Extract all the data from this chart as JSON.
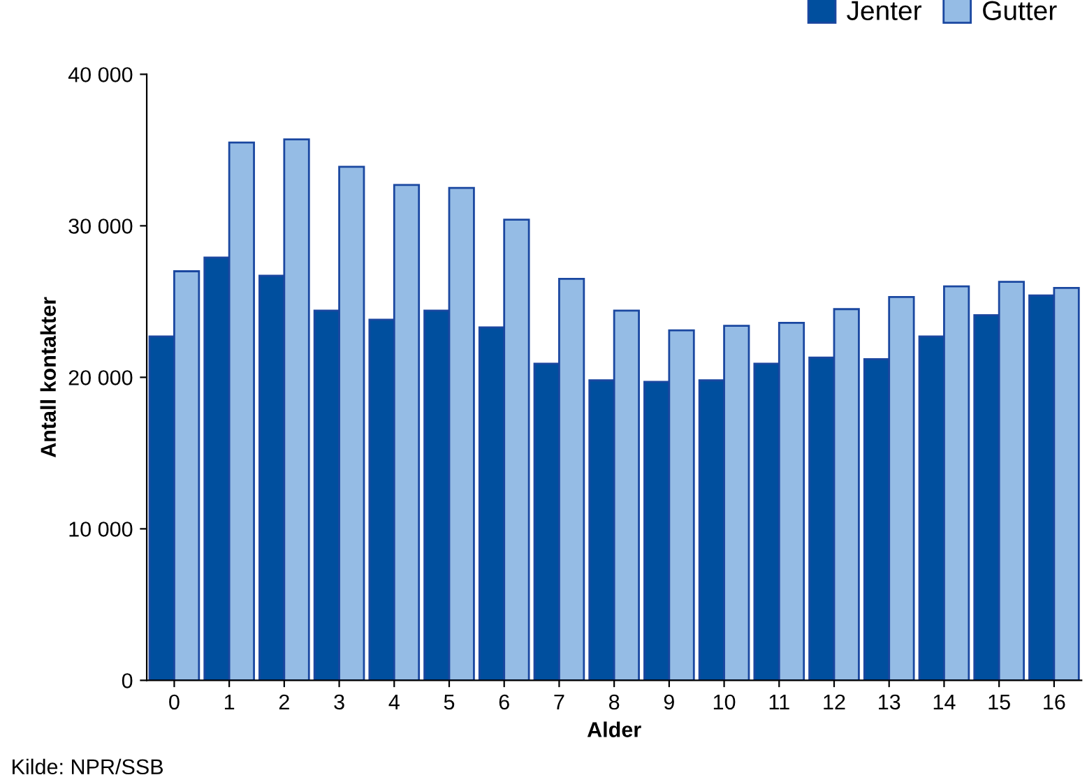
{
  "chart_data": {
    "type": "bar",
    "xlabel": "Alder",
    "ylabel": "Antall kontakter",
    "categories": [
      "0",
      "1",
      "2",
      "3",
      "4",
      "5",
      "6",
      "7",
      "8",
      "9",
      "10",
      "11",
      "12",
      "13",
      "14",
      "15",
      "16"
    ],
    "series": [
      {
        "name": "Jenter",
        "color": "#004f9e",
        "values": [
          22700,
          27900,
          26700,
          24400,
          23800,
          24400,
          23300,
          20900,
          19800,
          19700,
          19800,
          20900,
          21300,
          21200,
          22700,
          24100,
          25400
        ]
      },
      {
        "name": "Gutter",
        "color": "#95bce5",
        "values": [
          27000,
          35500,
          35700,
          33900,
          32700,
          32500,
          30400,
          26500,
          24400,
          23100,
          23400,
          23600,
          24500,
          25300,
          26000,
          26300,
          25900
        ]
      }
    ],
    "ylim": [
      0,
      40000
    ],
    "yticks": [
      {
        "value": 0,
        "label": "0"
      },
      {
        "value": 10000,
        "label": "10 000"
      },
      {
        "value": 20000,
        "label": "20 000"
      },
      {
        "value": 30000,
        "label": "30 000"
      },
      {
        "value": 40000,
        "label": "40 000"
      }
    ],
    "grid": false,
    "legend": "top right",
    "annotations": [
      "Kilde: NPR/SSB"
    ]
  }
}
